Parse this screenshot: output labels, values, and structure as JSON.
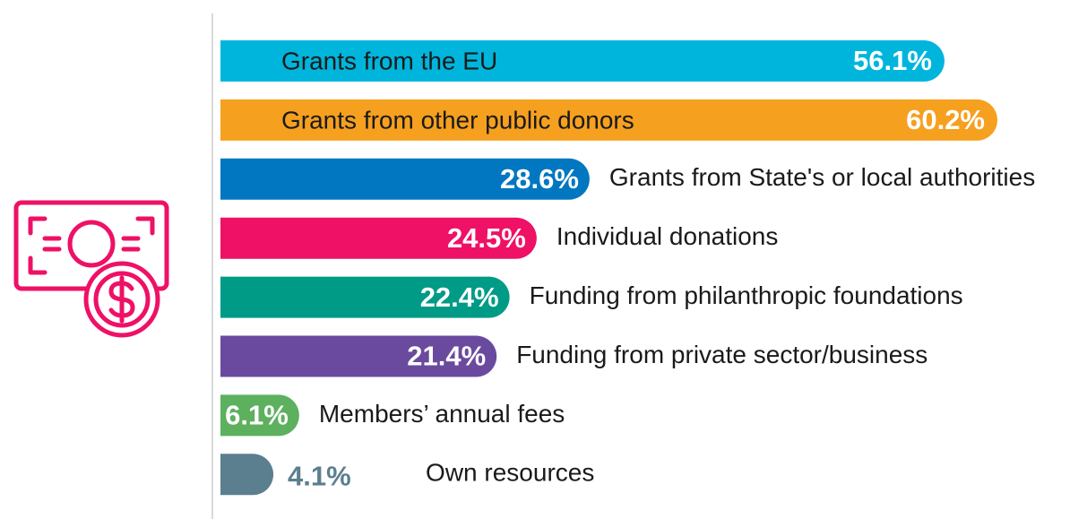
{
  "chart_data": {
    "type": "bar",
    "orientation": "horizontal",
    "categories": [
      "Grants from the EU",
      "Grants from other public donors",
      "Grants from State's or local authorities",
      "Individual donations",
      "Funding from philanthropic foundations",
      "Funding from private sector/business",
      "Members’ annual fees",
      "Own resources"
    ],
    "values": [
      56.1,
      60.2,
      28.6,
      24.5,
      22.4,
      21.4,
      6.1,
      4.1
    ],
    "value_labels": [
      "56.1%",
      "60.2%",
      "28.6%",
      "24.5%",
      "22.4%",
      "21.4%",
      "6.1%",
      "4.1%"
    ],
    "colors": [
      "#00b5dc",
      "#f6a01f",
      "#0077c0",
      "#ee1166",
      "#009b87",
      "#6a4a9e",
      "#5db05e",
      "#5b7f8f"
    ]
  }
}
